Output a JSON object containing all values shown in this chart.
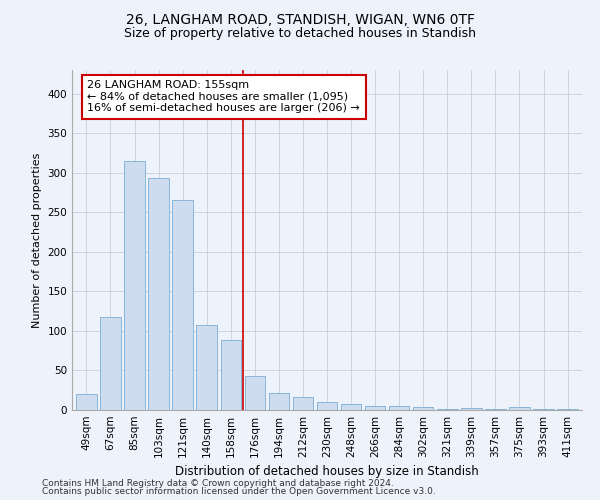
{
  "title1": "26, LANGHAM ROAD, STANDISH, WIGAN, WN6 0TF",
  "title2": "Size of property relative to detached houses in Standish",
  "xlabel": "Distribution of detached houses by size in Standish",
  "ylabel": "Number of detached properties",
  "categories": [
    "49sqm",
    "67sqm",
    "85sqm",
    "103sqm",
    "121sqm",
    "140sqm",
    "158sqm",
    "176sqm",
    "194sqm",
    "212sqm",
    "230sqm",
    "248sqm",
    "266sqm",
    "284sqm",
    "302sqm",
    "321sqm",
    "339sqm",
    "357sqm",
    "375sqm",
    "393sqm",
    "411sqm"
  ],
  "values": [
    20,
    118,
    315,
    293,
    266,
    108,
    88,
    43,
    22,
    16,
    10,
    7,
    5,
    5,
    4,
    1,
    2,
    1,
    4,
    1,
    1
  ],
  "bar_color": "#cddcee",
  "bar_edge_color": "#7aadd4",
  "vline_x": 6.5,
  "vline_color": "#cc0000",
  "annotation_title": "26 LANGHAM ROAD: 155sqm",
  "annotation_line1": "← 84% of detached houses are smaller (1,095)",
  "annotation_line2": "16% of semi-detached houses are larger (206) →",
  "annotation_box_color": "#ffffff",
  "annotation_box_edge": "#cc0000",
  "ylim": [
    0,
    430
  ],
  "yticks": [
    0,
    50,
    100,
    150,
    200,
    250,
    300,
    350,
    400
  ],
  "footer1": "Contains HM Land Registry data © Crown copyright and database right 2024.",
  "footer2": "Contains public sector information licensed under the Open Government Licence v3.0.",
  "bg_color": "#eef2fa",
  "title1_fontsize": 10,
  "title2_fontsize": 9,
  "xlabel_fontsize": 8.5,
  "ylabel_fontsize": 8,
  "tick_fontsize": 7.5,
  "annotation_fontsize": 8,
  "footer_fontsize": 6.5
}
